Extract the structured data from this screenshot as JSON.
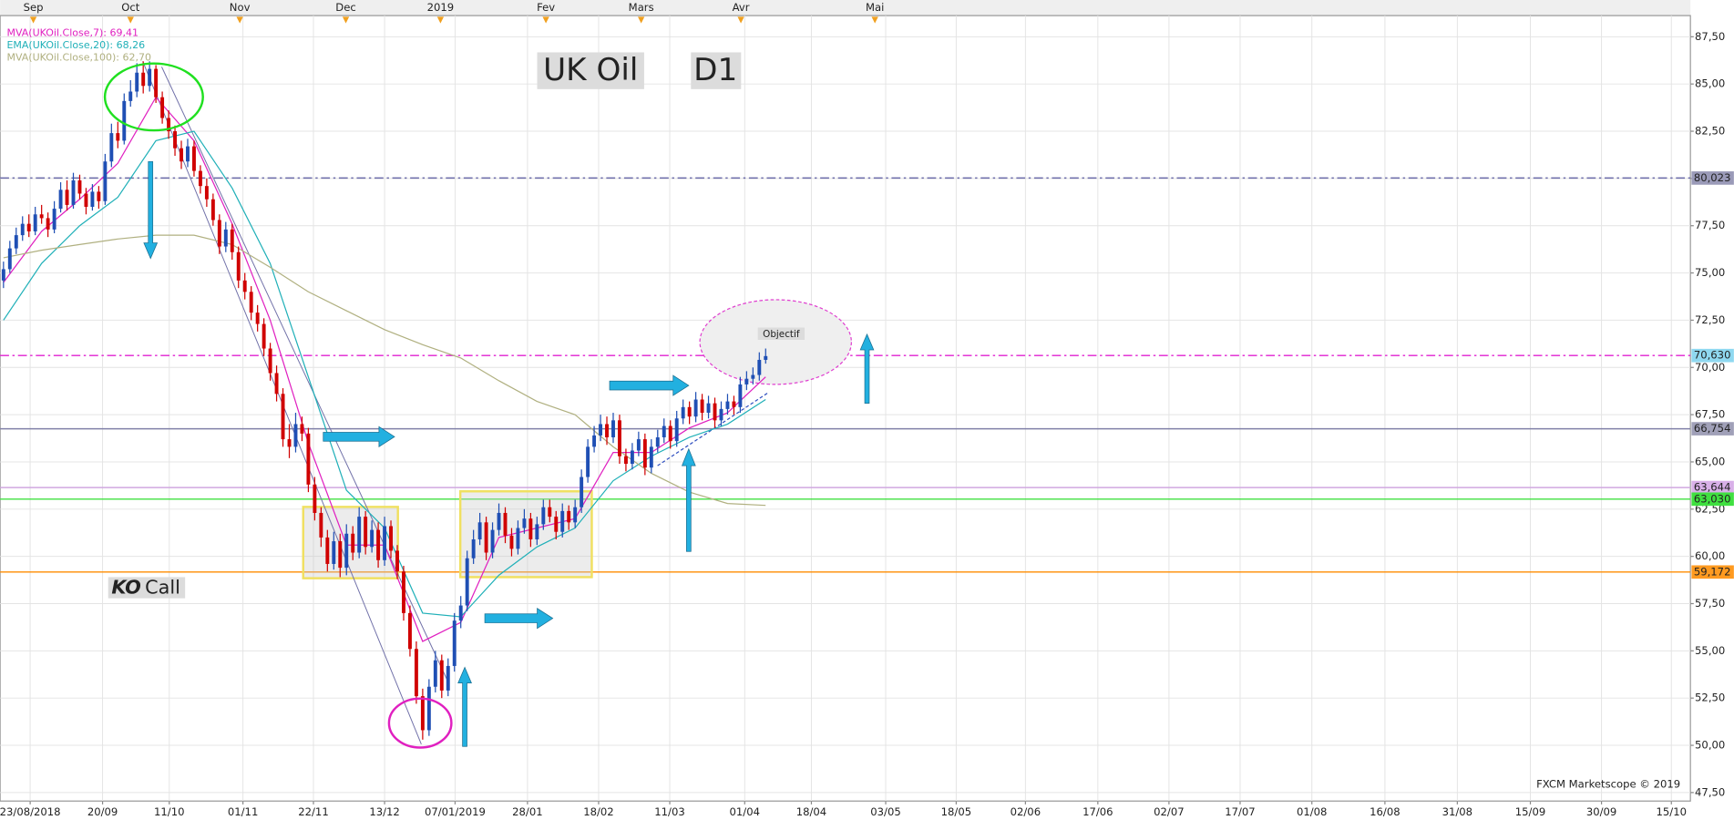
{
  "chart_data": {
    "type": "candlestick",
    "title": "UK Oil",
    "subtitle": "D1",
    "up_color": "#1f4fb4",
    "down_color": "#d00000",
    "open": [
      74.6,
      75.2,
      76.3,
      77.0,
      77.6,
      77.2,
      78.1,
      77.9,
      77.3,
      78.4,
      79.4,
      78.6,
      79.9,
      79.2,
      78.5,
      79.3,
      78.8,
      80.9,
      82.4,
      82.0,
      84.1,
      84.6,
      85.6,
      84.9,
      85.8,
      84.3,
      83.2,
      82.5,
      81.6,
      80.9,
      81.7,
      80.4,
      79.6,
      78.9,
      77.8,
      76.4,
      77.3,
      76.1,
      74.6,
      74.0,
      72.9,
      72.3,
      71.0,
      69.7,
      68.6,
      66.2,
      65.8,
      67.0,
      66.5,
      63.8,
      62.3,
      61.0,
      59.6,
      60.8,
      59.4,
      61.2,
      60.2,
      62.1,
      60.5,
      61.4,
      59.8,
      61.6,
      60.3,
      59.2,
      57.0,
      55.1,
      52.6,
      50.8,
      53.1,
      54.5,
      52.9,
      54.2,
      56.6,
      57.4,
      59.9,
      60.9,
      61.8,
      60.2,
      61.4,
      62.3,
      61.1,
      60.4,
      61.5,
      62.0,
      60.9,
      61.7,
      62.6,
      62.1,
      61.3,
      62.4,
      61.8,
      62.6,
      64.2,
      65.8,
      66.4,
      67.0,
      66.3,
      67.2,
      65.3,
      64.9,
      65.6,
      66.2,
      64.7,
      65.8,
      66.3,
      66.9,
      66.1,
      67.3,
      67.9,
      67.4,
      68.3,
      67.6,
      68.1,
      67.2,
      67.8,
      68.2,
      67.9,
      69.1,
      69.4,
      69.6,
      70.4
    ],
    "high": [
      75.6,
      76.7,
      77.4,
      78.0,
      78.1,
      78.5,
      78.6,
      78.2,
      78.8,
      79.8,
      79.9,
      80.3,
      80.2,
      79.5,
      79.7,
      79.6,
      81.3,
      82.9,
      83.0,
      84.5,
      85.2,
      86.1,
      86.2,
      86.2,
      86.0,
      84.6,
      83.6,
      82.8,
      82.0,
      82.1,
      82.0,
      80.7,
      80.0,
      79.2,
      78.1,
      77.7,
      77.6,
      76.4,
      75.0,
      74.3,
      73.3,
      72.6,
      71.3,
      70.1,
      68.9,
      67.0,
      67.6,
      67.4,
      66.8,
      64.2,
      62.6,
      61.4,
      61.3,
      61.2,
      61.7,
      61.6,
      62.6,
      62.4,
      61.9,
      61.8,
      62.1,
      61.9,
      60.6,
      59.5,
      57.4,
      55.5,
      53.0,
      53.5,
      55.0,
      54.8,
      54.6,
      57.0,
      57.9,
      60.3,
      61.4,
      62.3,
      62.1,
      61.8,
      62.8,
      62.6,
      61.5,
      61.9,
      62.5,
      62.3,
      62.1,
      63.0,
      63.0,
      62.4,
      62.8,
      62.7,
      63.0,
      64.6,
      66.2,
      66.9,
      67.5,
      67.4,
      67.6,
      67.5,
      65.7,
      66.0,
      66.6,
      66.5,
      66.2,
      66.7,
      67.3,
      67.2,
      67.7,
      68.3,
      68.2,
      68.7,
      68.6,
      68.5,
      68.4,
      68.2,
      68.6,
      68.5,
      69.5,
      69.8,
      70.0,
      70.8,
      71.0
    ],
    "low": [
      74.2,
      75.0,
      76.0,
      76.7,
      76.9,
      77.0,
      77.6,
      76.9,
      77.1,
      78.2,
      78.3,
      78.4,
      78.9,
      78.1,
      78.3,
      78.4,
      78.6,
      80.6,
      81.6,
      81.8,
      83.8,
      84.3,
      84.5,
      84.6,
      84.0,
      82.9,
      82.1,
      81.2,
      80.5,
      80.6,
      80.1,
      79.2,
      78.5,
      77.5,
      76.0,
      76.1,
      75.7,
      74.2,
      73.6,
      72.5,
      71.9,
      70.6,
      69.3,
      68.2,
      65.8,
      65.2,
      65.5,
      66.1,
      63.4,
      61.9,
      60.5,
      59.2,
      59.3,
      58.9,
      59.0,
      59.8,
      59.9,
      60.1,
      60.2,
      59.4,
      59.5,
      59.9,
      58.8,
      56.6,
      54.7,
      52.2,
      50.3,
      50.5,
      52.8,
      52.5,
      52.6,
      53.9,
      56.2,
      57.1,
      59.6,
      60.6,
      59.8,
      59.9,
      61.1,
      60.7,
      60.0,
      60.1,
      61.2,
      60.5,
      60.6,
      61.4,
      61.8,
      60.9,
      61.0,
      61.4,
      61.5,
      62.3,
      63.9,
      65.5,
      66.1,
      65.9,
      66.0,
      64.9,
      64.5,
      64.6,
      65.3,
      64.3,
      64.4,
      65.5,
      66.0,
      65.7,
      65.8,
      67.0,
      67.0,
      67.1,
      67.2,
      67.3,
      66.8,
      66.9,
      67.5,
      67.5,
      67.6,
      68.8,
      69.1,
      69.3,
      70.2
    ],
    "close": [
      75.2,
      76.3,
      77.0,
      77.6,
      77.2,
      78.1,
      77.9,
      77.3,
      78.4,
      79.4,
      78.6,
      79.9,
      79.2,
      78.5,
      79.3,
      78.8,
      80.9,
      82.4,
      82.0,
      84.1,
      84.6,
      85.6,
      84.9,
      85.8,
      84.3,
      83.2,
      82.5,
      81.6,
      80.9,
      81.7,
      80.4,
      79.6,
      78.9,
      77.8,
      76.4,
      77.3,
      76.1,
      74.6,
      74.0,
      72.9,
      72.3,
      71.0,
      69.7,
      68.6,
      66.2,
      65.8,
      67.0,
      66.5,
      63.8,
      62.3,
      61.0,
      59.6,
      60.8,
      59.4,
      61.2,
      60.2,
      62.1,
      60.5,
      61.4,
      59.8,
      61.6,
      60.3,
      59.2,
      57.0,
      55.1,
      52.6,
      50.8,
      53.1,
      54.5,
      52.9,
      54.2,
      56.6,
      57.4,
      59.9,
      60.9,
      61.8,
      60.2,
      61.4,
      62.3,
      61.1,
      60.4,
      61.5,
      62.0,
      60.9,
      61.7,
      62.6,
      62.1,
      61.3,
      62.4,
      61.8,
      62.6,
      64.2,
      65.8,
      66.4,
      67.0,
      66.3,
      67.2,
      65.3,
      64.9,
      65.6,
      66.2,
      64.7,
      65.8,
      66.3,
      66.9,
      66.1,
      67.3,
      67.9,
      67.4,
      68.3,
      67.6,
      68.1,
      67.2,
      67.8,
      68.2,
      67.9,
      69.1,
      69.4,
      69.6,
      70.4,
      70.6
    ],
    "indicators": [
      {
        "name": "MVA(UKOil.Close,7): 69,41",
        "color": "#e020c0",
        "x": [
          0,
          6,
          12,
          18,
          24,
          30,
          36,
          42,
          48,
          54,
          60,
          66,
          72,
          78,
          84,
          90,
          96,
          102,
          108,
          114,
          120
        ],
        "values": [
          74.5,
          77.2,
          78.9,
          80.8,
          84.3,
          82.0,
          77.6,
          72.5,
          66.0,
          60.6,
          60.6,
          55.5,
          56.5,
          61.0,
          61.5,
          62.0,
          65.5,
          65.5,
          66.8,
          67.6,
          69.5
        ]
      },
      {
        "name": "EMA(UKOil.Close,20): 68,26",
        "color": "#20b0b8",
        "x": [
          0,
          6,
          12,
          18,
          24,
          30,
          36,
          42,
          48,
          54,
          60,
          66,
          72,
          78,
          84,
          90,
          96,
          102,
          108,
          114,
          120
        ],
        "values": [
          72.5,
          75.5,
          77.5,
          79.0,
          82.0,
          82.5,
          79.5,
          75.5,
          69.5,
          63.5,
          61.5,
          57.0,
          56.8,
          59.0,
          60.5,
          61.5,
          64.0,
          65.3,
          66.3,
          67.0,
          68.3
        ]
      },
      {
        "name": "MVA(UKOil.Close,100): 62,70",
        "color": "#b0b080",
        "x": [
          0,
          6,
          12,
          18,
          24,
          30,
          36,
          42,
          48,
          54,
          60,
          66,
          72,
          78,
          84,
          90,
          96,
          102,
          108,
          114,
          120
        ],
        "values": [
          75.8,
          76.2,
          76.5,
          76.8,
          77.0,
          77.0,
          76.5,
          75.3,
          74.0,
          73.0,
          72.0,
          71.2,
          70.5,
          69.3,
          68.2,
          67.5,
          65.8,
          64.4,
          63.4,
          62.8,
          62.7
        ]
      }
    ],
    "levels": [
      {
        "value": 80.023,
        "label": "80,023",
        "color": "#6a6aa8",
        "label_bg": "#9a9ab8",
        "dash": "8 3 2 3"
      },
      {
        "value": 70.63,
        "label": "70,630",
        "color": "#e020d0",
        "label_bg": "#8fd8f0",
        "dash": "8 3 2 3"
      },
      {
        "value": 66.754,
        "label": "66,754",
        "color": "#8080a8",
        "label_bg": "#a0a0b8",
        "dash": ""
      },
      {
        "value": 63.644,
        "label": "63,644",
        "color": "#d0a8e0",
        "label_bg": "#d8b0e8",
        "dash": ""
      },
      {
        "value": 63.03,
        "label": "63,030",
        "color": "#40e040",
        "label_bg": "#40e040",
        "dash": ""
      },
      {
        "value": 59.172,
        "label": "59,172",
        "color": "#ff8c00",
        "label_bg": "#ff9a20",
        "dash": ""
      }
    ],
    "xlim": [
      -0.53,
      265.6
    ],
    "ylim": [
      47.05,
      88.62
    ],
    "yticks": [
      {
        "value": 47.5,
        "label": "47,50"
      },
      {
        "value": 50,
        "label": "50,00"
      },
      {
        "value": 52.5,
        "label": "52,50"
      },
      {
        "value": 55,
        "label": "55,00"
      },
      {
        "value": 57.5,
        "label": "57,50"
      },
      {
        "value": 60,
        "label": "60,00"
      },
      {
        "value": 62.5,
        "label": "62,50"
      },
      {
        "value": 65,
        "label": "65,00"
      },
      {
        "value": 67.5,
        "label": "67,50"
      },
      {
        "value": 70,
        "label": "70,00"
      },
      {
        "value": 72.5,
        "label": "72,50"
      },
      {
        "value": 75,
        "label": "75,00"
      },
      {
        "value": 77.5,
        "label": "77,50"
      },
      {
        "value": 80,
        "label": "80,00"
      },
      {
        "value": 82.5,
        "label": "82,50"
      },
      {
        "value": 85,
        "label": "85,00"
      },
      {
        "value": 87.5,
        "label": "87,50"
      }
    ],
    "xticks": [
      {
        "value": 4.2,
        "label": "23/08/2018"
      },
      {
        "value": 15.6,
        "label": "20/09"
      },
      {
        "value": 26.1,
        "label": "11/10"
      },
      {
        "value": 37.7,
        "label": "01/11"
      },
      {
        "value": 48.8,
        "label": "22/11"
      },
      {
        "value": 60.0,
        "label": "13/12"
      },
      {
        "value": 71.1,
        "label": "07/01/2019"
      },
      {
        "value": 82.5,
        "label": "28/01"
      },
      {
        "value": 93.7,
        "label": "18/02"
      },
      {
        "value": 104.9,
        "label": "11/03"
      },
      {
        "value": 116.7,
        "label": "01/04"
      },
      {
        "value": 127.2,
        "label": "18/04"
      },
      {
        "value": 138.9,
        "label": "03/05"
      },
      {
        "value": 150.0,
        "label": "18/05"
      },
      {
        "value": 160.9,
        "label": "02/06"
      },
      {
        "value": 172.3,
        "label": "17/06"
      },
      {
        "value": 183.5,
        "label": "02/07"
      },
      {
        "value": 194.7,
        "label": "17/07"
      },
      {
        "value": 206.0,
        "label": "01/08"
      },
      {
        "value": 217.5,
        "label": "16/08"
      },
      {
        "value": 228.9,
        "label": "31/08"
      },
      {
        "value": 240.4,
        "label": "15/09"
      },
      {
        "value": 251.6,
        "label": "30/09"
      },
      {
        "value": 262.6,
        "label": "15/10"
      }
    ],
    "x2ticks": [
      {
        "value": 4.7,
        "label": "Sep"
      },
      {
        "value": 20.0,
        "label": "Oct"
      },
      {
        "value": 37.2,
        "label": "Nov"
      },
      {
        "value": 53.9,
        "label": "Dec"
      },
      {
        "value": 68.8,
        "label": "2019"
      },
      {
        "value": 85.4,
        "label": "Fev"
      },
      {
        "value": 100.4,
        "label": "Mars"
      },
      {
        "value": 116.1,
        "label": "Avr"
      },
      {
        "value": 137.2,
        "label": "Mai"
      }
    ],
    "grid": true,
    "annotations": {
      "ko": "KO",
      "call": "Call",
      "objective": "Objectif",
      "credit": "FXCM Marketscope © 2019"
    }
  }
}
